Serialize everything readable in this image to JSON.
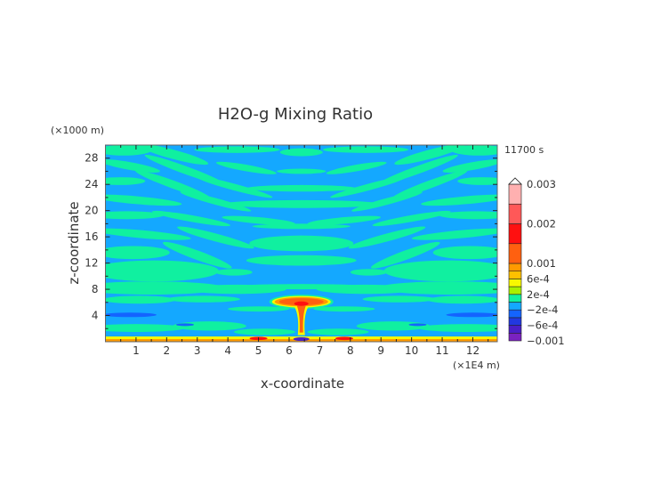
{
  "chart_data": {
    "type": "heatmap",
    "title": "H2O-g Mixing Ratio",
    "xlabel": "x-coordinate",
    "ylabel": "z-coordinate",
    "x_unit": "(×1E4 m)",
    "y_unit": "(×1000 m)",
    "time_label": "11700 s",
    "xlim": [
      0,
      12.8
    ],
    "ylim": [
      0,
      30
    ],
    "x_ticks": [
      1,
      2,
      3,
      4,
      5,
      6,
      7,
      8,
      9,
      10,
      11,
      12
    ],
    "x_tick_labels": [
      "1",
      "2",
      "3",
      "4",
      "5",
      "6",
      "7",
      "8",
      "9",
      "10",
      "11",
      "12"
    ],
    "y_ticks": [
      4,
      8,
      12,
      16,
      20,
      24,
      28
    ],
    "y_tick_labels": [
      "4",
      "8",
      "12",
      "16",
      "20",
      "24",
      "28"
    ],
    "colorbar": {
      "levels": [
        -0.001,
        -0.0008,
        -0.0006,
        -0.0004,
        -0.0002,
        0,
        0.0002,
        0.0004,
        0.0006,
        0.0008,
        0.001,
        0.0015,
        0.002,
        0.0025,
        0.003
      ],
      "colors": [
        "#7a22c0",
        "#4a1fc8",
        "#2238e0",
        "#1464ff",
        "#14a8ff",
        "#10f0a0",
        "#a8f000",
        "#f8f800",
        "#ffc000",
        "#ff9a00",
        "#ff6010",
        "#ff1010",
        "#ff5858",
        "#ffb0b0"
      ],
      "labels": [
        {
          "value": 0.003,
          "text": "0.003"
        },
        {
          "value": 0.002,
          "text": "0.002"
        },
        {
          "value": 0.001,
          "text": "0.001"
        },
        {
          "value": 0.0006,
          "text": "6e-4"
        },
        {
          "value": 0.0002,
          "text": "2e-4"
        },
        {
          "value": -0.0002,
          "text": "−2e-4"
        },
        {
          "value": -0.0006,
          "text": "−6e-4"
        },
        {
          "value": -0.001,
          "text": "−0.001"
        }
      ],
      "extend": "max"
    },
    "field_description_colors": {
      "background": "#14a8ff",
      "band": "#10f0a0",
      "plume_core": "#ff2a10"
    }
  }
}
